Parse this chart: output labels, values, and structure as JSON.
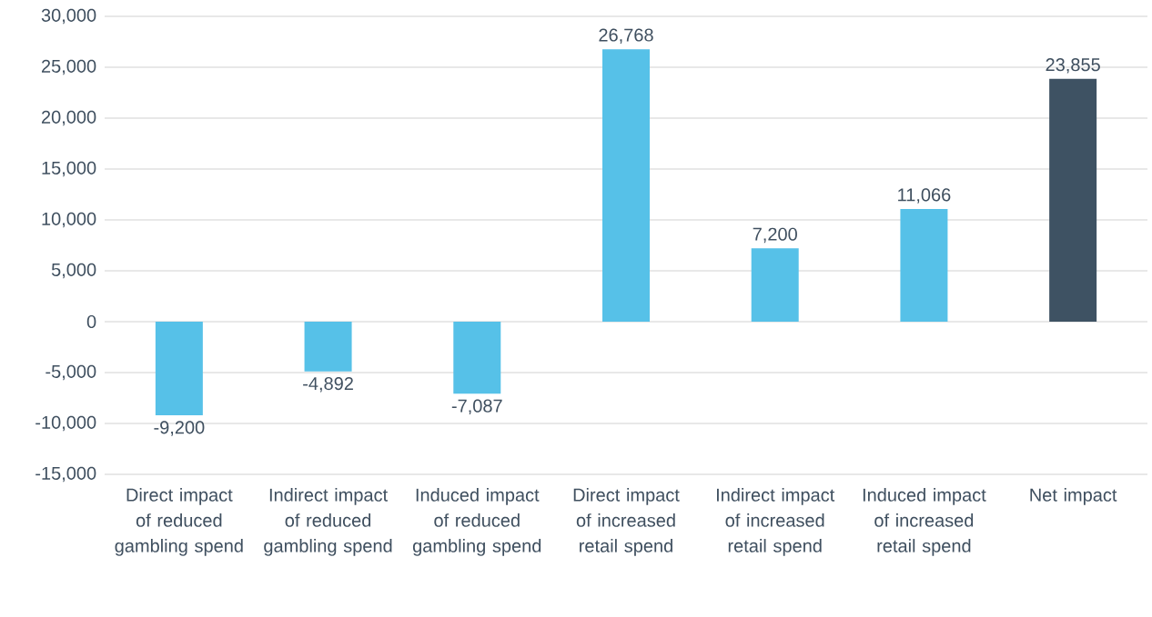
{
  "chart_data": {
    "type": "bar",
    "categories": [
      "Direct impact of reduced gambling spend",
      "Indirect impact of reduced gambling spend",
      "Induced impact of reduced gambling spend",
      "Direct impact of increased retail spend",
      "Indirect impact of increased retail spend",
      "Induced impact of increased retail spend",
      "Net impact"
    ],
    "values": [
      -9200,
      -4892,
      -7087,
      26768,
      7200,
      11066,
      23855
    ],
    "colors": [
      "#56c1e8",
      "#56c1e8",
      "#56c1e8",
      "#56c1e8",
      "#56c1e8",
      "#56c1e8",
      "#3e5263"
    ],
    "value_labels": [
      "-9,200",
      "-4,892",
      "-7,087",
      "26,768",
      "7,200",
      "11,066",
      "23,855"
    ],
    "ylim": [
      -15000,
      30000
    ],
    "yticks": [
      {
        "value": -15000,
        "label": "-15,000"
      },
      {
        "value": -10000,
        "label": "-10,000"
      },
      {
        "value": -5000,
        "label": "-5,000"
      },
      {
        "value": 0,
        "label": "0"
      },
      {
        "value": 5000,
        "label": "5,000"
      },
      {
        "value": 10000,
        "label": "10,000"
      },
      {
        "value": 15000,
        "label": "15,000"
      },
      {
        "value": 20000,
        "label": "20,000"
      },
      {
        "value": 25000,
        "label": "25,000"
      },
      {
        "value": 30000,
        "label": "30,000"
      }
    ],
    "grid": "y"
  }
}
